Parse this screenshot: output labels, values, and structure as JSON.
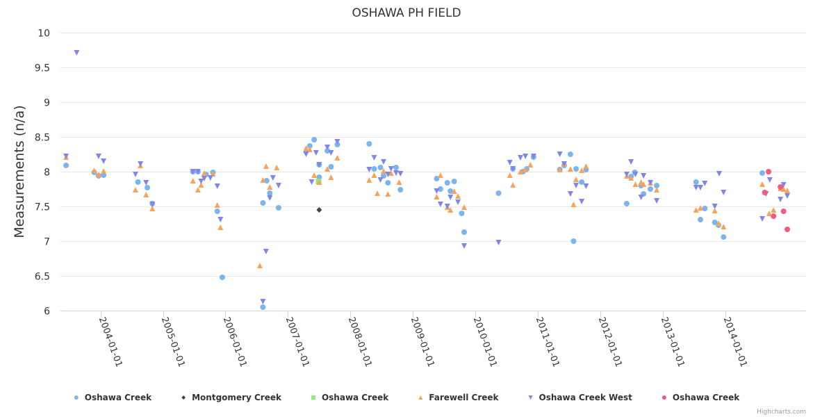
{
  "chart_data": {
    "type": "scatter",
    "title": "OSHAWA PH FIELD",
    "xlabel": "",
    "ylabel": "Measurements (n/a)",
    "ylim": [
      6,
      10
    ],
    "yticks": [
      "6",
      "6.5",
      "7",
      "7.5",
      "8",
      "8.5",
      "9",
      "9.5",
      "10"
    ],
    "xlim": [
      2003.36,
      2015.29
    ],
    "xticks": [
      {
        "label": "2004-01-01",
        "x": 2004
      },
      {
        "label": "2005-01-01",
        "x": 2005
      },
      {
        "label": "2006-01-01",
        "x": 2006
      },
      {
        "label": "2007-01-01",
        "x": 2007
      },
      {
        "label": "2008-01-01",
        "x": 2008
      },
      {
        "label": "2009-01-01",
        "x": 2009
      },
      {
        "label": "2010-01-01",
        "x": 2010
      },
      {
        "label": "2011-01-01",
        "x": 2011
      },
      {
        "label": "2012-01-01",
        "x": 2012
      },
      {
        "label": "2013-01-01",
        "x": 2013
      },
      {
        "label": "2014-01-01",
        "x": 2014
      }
    ],
    "grid": true,
    "legend": "bottom-center",
    "series": [
      {
        "name": "Oshawa Creek",
        "marker": "circle",
        "color": "#7cb5ec",
        "points": [
          [
            2003.45,
            8.09
          ],
          [
            2003.9,
            7.99
          ],
          [
            2003.97,
            7.94
          ],
          [
            2004.05,
            7.95
          ],
          [
            2004.6,
            7.85
          ],
          [
            2004.75,
            7.77
          ],
          [
            2004.83,
            7.54
          ],
          [
            2005.48,
            8.0
          ],
          [
            2005.56,
            8.0
          ],
          [
            2005.69,
            7.96
          ],
          [
            2005.8,
            7.99
          ],
          [
            2005.87,
            7.43
          ],
          [
            2005.95,
            6.48
          ],
          [
            2006.6,
            7.55
          ],
          [
            2006.66,
            7.87
          ],
          [
            2006.71,
            7.69
          ],
          [
            2006.85,
            7.48
          ],
          [
            2006.6,
            6.05
          ],
          [
            2007.29,
            8.29
          ],
          [
            2007.35,
            8.37
          ],
          [
            2007.42,
            8.46
          ],
          [
            2007.5,
            7.92
          ],
          [
            2007.5,
            8.1
          ],
          [
            2007.63,
            8.3
          ],
          [
            2007.69,
            8.07
          ],
          [
            2007.79,
            8.39
          ],
          [
            2008.3,
            8.4
          ],
          [
            2008.38,
            8.04
          ],
          [
            2008.48,
            8.06
          ],
          [
            2008.53,
            7.94
          ],
          [
            2008.6,
            7.84
          ],
          [
            2008.73,
            8.06
          ],
          [
            2008.8,
            7.74
          ],
          [
            2009.38,
            7.9
          ],
          [
            2009.44,
            7.75
          ],
          [
            2009.55,
            7.84
          ],
          [
            2009.6,
            7.72
          ],
          [
            2009.66,
            7.86
          ],
          [
            2009.78,
            7.4
          ],
          [
            2009.82,
            7.13
          ],
          [
            2010.37,
            7.69
          ],
          [
            2010.6,
            8.04
          ],
          [
            2010.76,
            8.0
          ],
          [
            2010.82,
            8.04
          ],
          [
            2010.93,
            8.21
          ],
          [
            2011.35,
            8.03
          ],
          [
            2011.42,
            8.09
          ],
          [
            2011.52,
            8.25
          ],
          [
            2011.61,
            8.04
          ],
          [
            2011.7,
            7.85
          ],
          [
            2011.77,
            8.03
          ],
          [
            2011.57,
            7.0
          ],
          [
            2012.42,
            7.54
          ],
          [
            2012.49,
            7.93
          ],
          [
            2012.55,
            7.99
          ],
          [
            2012.65,
            7.8
          ],
          [
            2012.69,
            7.68
          ],
          [
            2012.8,
            7.75
          ],
          [
            2012.9,
            7.8
          ],
          [
            2013.53,
            7.85
          ],
          [
            2013.6,
            7.31
          ],
          [
            2013.67,
            7.47
          ],
          [
            2013.83,
            7.27
          ],
          [
            2013.89,
            7.23
          ],
          [
            2013.97,
            7.06
          ],
          [
            2014.59,
            7.98
          ]
        ]
      },
      {
        "name": "Montgomery Creek",
        "marker": "diamond",
        "color": "#434348",
        "points": [
          [
            2007.5,
            7.45
          ]
        ]
      },
      {
        "name": "Oshawa Creek",
        "marker": "square",
        "color": "#90ed7d",
        "points": [
          [
            2007.49,
            7.86
          ]
        ]
      },
      {
        "name": "Farewell Creek",
        "marker": "triangle",
        "color": "#f7a35c",
        "points": [
          [
            2003.45,
            8.21
          ],
          [
            2003.9,
            8.02
          ],
          [
            2003.97,
            7.96
          ],
          [
            2004.05,
            8.01
          ],
          [
            2004.56,
            7.74
          ],
          [
            2004.64,
            8.09
          ],
          [
            2004.73,
            7.67
          ],
          [
            2004.83,
            7.47
          ],
          [
            2005.48,
            7.87
          ],
          [
            2005.56,
            7.74
          ],
          [
            2005.61,
            7.81
          ],
          [
            2005.66,
            7.98
          ],
          [
            2005.8,
            7.97
          ],
          [
            2005.87,
            7.52
          ],
          [
            2005.92,
            7.2
          ],
          [
            2006.55,
            6.65
          ],
          [
            2006.6,
            7.88
          ],
          [
            2006.65,
            8.08
          ],
          [
            2006.71,
            7.78
          ],
          [
            2006.82,
            8.06
          ],
          [
            2007.29,
            8.34
          ],
          [
            2007.35,
            8.32
          ],
          [
            2007.42,
            7.95
          ],
          [
            2007.5,
            7.85
          ],
          [
            2007.63,
            8.04
          ],
          [
            2007.69,
            7.92
          ],
          [
            2007.79,
            8.2
          ],
          [
            2008.3,
            7.88
          ],
          [
            2008.38,
            7.95
          ],
          [
            2008.43,
            7.69
          ],
          [
            2008.53,
            8.01
          ],
          [
            2008.6,
            7.68
          ],
          [
            2008.65,
            7.98
          ],
          [
            2008.78,
            7.85
          ],
          [
            2009.38,
            7.64
          ],
          [
            2009.44,
            7.95
          ],
          [
            2009.55,
            7.49
          ],
          [
            2009.6,
            7.45
          ],
          [
            2009.66,
            7.72
          ],
          [
            2009.72,
            7.65
          ],
          [
            2009.82,
            7.49
          ],
          [
            2010.55,
            7.95
          ],
          [
            2010.6,
            7.81
          ],
          [
            2010.72,
            8.0
          ],
          [
            2010.8,
            8.03
          ],
          [
            2010.88,
            8.1
          ],
          [
            2011.35,
            8.03
          ],
          [
            2011.42,
            8.11
          ],
          [
            2011.52,
            8.04
          ],
          [
            2011.57,
            7.53
          ],
          [
            2011.61,
            7.89
          ],
          [
            2011.7,
            8.02
          ],
          [
            2011.77,
            8.08
          ],
          [
            2012.42,
            7.94
          ],
          [
            2012.49,
            7.91
          ],
          [
            2012.56,
            7.82
          ],
          [
            2012.65,
            7.85
          ],
          [
            2012.69,
            7.82
          ],
          [
            2012.8,
            7.84
          ],
          [
            2012.9,
            7.74
          ],
          [
            2013.53,
            7.45
          ],
          [
            2013.6,
            7.48
          ],
          [
            2013.83,
            7.44
          ],
          [
            2013.89,
            7.26
          ],
          [
            2013.97,
            7.21
          ],
          [
            2014.59,
            7.82
          ],
          [
            2014.7,
            7.4
          ],
          [
            2014.77,
            7.45
          ],
          [
            2014.88,
            7.76
          ],
          [
            2014.93,
            7.75
          ],
          [
            2014.99,
            7.73
          ]
        ]
      },
      {
        "name": "Oshawa Creek West",
        "marker": "triangle-down",
        "color": "#8085e9",
        "points": [
          [
            2003.45,
            8.22
          ],
          [
            2003.62,
            9.71
          ],
          [
            2003.97,
            8.22
          ],
          [
            2004.05,
            8.15
          ],
          [
            2004.56,
            7.96
          ],
          [
            2004.64,
            8.11
          ],
          [
            2004.73,
            7.84
          ],
          [
            2004.83,
            7.53
          ],
          [
            2005.48,
            8.0
          ],
          [
            2005.56,
            8.0
          ],
          [
            2005.61,
            7.86
          ],
          [
            2005.66,
            7.9
          ],
          [
            2005.76,
            7.91
          ],
          [
            2005.87,
            7.79
          ],
          [
            2005.92,
            7.31
          ],
          [
            2006.6,
            6.13
          ],
          [
            2006.65,
            6.85
          ],
          [
            2006.71,
            7.62
          ],
          [
            2006.76,
            7.91
          ],
          [
            2006.85,
            7.8
          ],
          [
            2007.29,
            8.25
          ],
          [
            2007.38,
            7.85
          ],
          [
            2007.45,
            8.27
          ],
          [
            2007.5,
            8.1
          ],
          [
            2007.63,
            8.35
          ],
          [
            2007.69,
            8.27
          ],
          [
            2007.79,
            8.43
          ],
          [
            2008.3,
            8.03
          ],
          [
            2008.38,
            8.2
          ],
          [
            2008.48,
            7.88
          ],
          [
            2008.53,
            8.14
          ],
          [
            2008.6,
            7.96
          ],
          [
            2008.65,
            8.04
          ],
          [
            2008.73,
            7.98
          ],
          [
            2008.8,
            7.97
          ],
          [
            2009.38,
            7.72
          ],
          [
            2009.44,
            7.53
          ],
          [
            2009.55,
            7.5
          ],
          [
            2009.6,
            7.63
          ],
          [
            2009.72,
            7.56
          ],
          [
            2009.82,
            6.93
          ],
          [
            2010.37,
            6.98
          ],
          [
            2010.55,
            8.13
          ],
          [
            2010.6,
            8.04
          ],
          [
            2010.72,
            8.2
          ],
          [
            2010.8,
            8.22
          ],
          [
            2010.93,
            8.22
          ],
          [
            2011.35,
            8.25
          ],
          [
            2011.42,
            8.11
          ],
          [
            2011.52,
            7.68
          ],
          [
            2011.61,
            7.8
          ],
          [
            2011.7,
            7.57
          ],
          [
            2011.77,
            7.79
          ],
          [
            2012.42,
            7.96
          ],
          [
            2012.49,
            8.14
          ],
          [
            2012.56,
            7.96
          ],
          [
            2012.65,
            7.63
          ],
          [
            2012.69,
            7.94
          ],
          [
            2012.8,
            7.84
          ],
          [
            2012.9,
            7.58
          ],
          [
            2013.53,
            7.77
          ],
          [
            2013.6,
            7.77
          ],
          [
            2013.67,
            7.83
          ],
          [
            2013.83,
            7.5
          ],
          [
            2013.9,
            7.97
          ],
          [
            2013.97,
            7.7
          ],
          [
            2014.59,
            7.32
          ],
          [
            2014.71,
            7.88
          ],
          [
            2014.65,
            7.68
          ],
          [
            2014.88,
            7.6
          ],
          [
            2014.93,
            7.81
          ],
          [
            2014.99,
            7.65
          ]
        ]
      },
      {
        "name": "Oshawa Creek",
        "marker": "circle",
        "color": "#f15c80",
        "points": [
          [
            2014.63,
            7.7
          ],
          [
            2014.69,
            8.0
          ],
          [
            2014.77,
            7.36
          ],
          [
            2014.88,
            7.78
          ],
          [
            2014.93,
            7.43
          ],
          [
            2014.99,
            7.17
          ]
        ]
      }
    ]
  },
  "credits": "Highcharts.com"
}
